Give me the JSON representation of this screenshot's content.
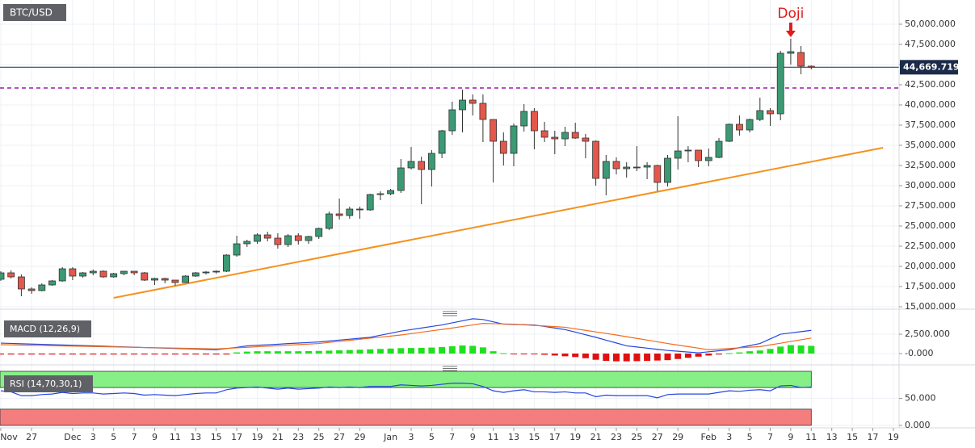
{
  "chart_data": [
    {
      "type": "candlestick",
      "title": "BTC/USD",
      "open": [
        18400,
        19200,
        18700,
        17200,
        17000,
        17700,
        18200,
        19700,
        18800,
        19200,
        19400,
        18700,
        19100,
        19400,
        19200,
        18300,
        18500,
        18300,
        18000,
        18800,
        19200,
        19300,
        19400,
        21400,
        22800,
        23100,
        23900,
        23500,
        22700,
        23800,
        23200,
        23700,
        24700,
        26500,
        26300,
        27100,
        27000,
        28900,
        29000,
        29400,
        32200,
        33000,
        32000,
        34000,
        36800,
        39400,
        40600,
        40200,
        38200,
        35500,
        34000,
        37400,
        39200,
        36800,
        36000,
        35800,
        36600,
        35900,
        35500,
        30900,
        33000,
        32100,
        32300,
        32300,
        32500,
        30400,
        33400,
        34300,
        34400,
        33100,
        33500,
        35500,
        37600,
        36900,
        38200,
        39300,
        38900,
        46400,
        46500,
        44800
      ],
      "high": [
        19400,
        19500,
        19000,
        17400,
        17900,
        18300,
        19900,
        19900,
        19300,
        19600,
        19500,
        19200,
        19400,
        19400,
        19300,
        18600,
        18600,
        18300,
        18900,
        19300,
        19400,
        19500,
        21500,
        23800,
        23300,
        24100,
        24300,
        24100,
        24000,
        24100,
        23800,
        24800,
        26800,
        28400,
        27400,
        27400,
        29000,
        29300,
        29600,
        33300,
        34800,
        33600,
        34400,
        36900,
        40400,
        41900,
        41300,
        41300,
        38200,
        36600,
        37700,
        40100,
        39600,
        37900,
        36800,
        37300,
        37800,
        36400,
        35600,
        33800,
        33500,
        32900,
        34900,
        32900,
        32600,
        33800,
        38600,
        34900,
        34400,
        34600,
        35900,
        37700,
        38700,
        38300,
        40900,
        39600,
        46700,
        48200,
        47300,
        44900
      ],
      "low": [
        18200,
        18500,
        16300,
        16600,
        16900,
        17600,
        18100,
        18300,
        18600,
        18900,
        18600,
        18600,
        18900,
        18900,
        18200,
        17700,
        17900,
        17600,
        18000,
        18700,
        19000,
        19100,
        19300,
        21200,
        22400,
        22800,
        23100,
        22200,
        22400,
        22700,
        22800,
        23400,
        24500,
        25800,
        25900,
        25900,
        26900,
        28200,
        28800,
        29100,
        32000,
        27700,
        29900,
        33400,
        36300,
        36600,
        38700,
        35400,
        30400,
        32500,
        32400,
        36700,
        34500,
        35400,
        33900,
        34900,
        35800,
        33400,
        30000,
        28800,
        31400,
        31000,
        31800,
        30800,
        29300,
        29900,
        32000,
        32900,
        32300,
        32400,
        33400,
        35400,
        36200,
        36600,
        38000,
        37400,
        38100,
        45000,
        43800,
        44400
      ],
      "close": [
        19200,
        18700,
        17200,
        17000,
        17700,
        18200,
        19700,
        18800,
        19200,
        19400,
        18700,
        19100,
        19400,
        19200,
        18300,
        18500,
        18300,
        18000,
        18800,
        19200,
        19300,
        19400,
        21400,
        22800,
        23100,
        23900,
        23500,
        22700,
        23800,
        23200,
        23700,
        24700,
        26500,
        26300,
        27100,
        27000,
        28900,
        29000,
        29400,
        32200,
        33000,
        32000,
        34000,
        36800,
        39400,
        40600,
        40200,
        38200,
        35500,
        34000,
        37400,
        39200,
        36800,
        36000,
        35800,
        36600,
        35900,
        35500,
        30900,
        33000,
        32100,
        32300,
        32300,
        32500,
        30400,
        33400,
        34300,
        34400,
        33100,
        33500,
        35500,
        37600,
        36900,
        38200,
        39300,
        38900,
        46400,
        46600,
        44800,
        44669.719
      ],
      "up_color": "#3b9a74",
      "down_color": "#e4574b",
      "ylim": [
        14800,
        53000
      ],
      "yticks": [
        {
          "value": 15000,
          "label": "15,000.000"
        },
        {
          "value": 17500,
          "label": "17,500.000"
        },
        {
          "value": 20000,
          "label": "20,000.000"
        },
        {
          "value": 22500,
          "label": "22,500.000"
        },
        {
          "value": 25000,
          "label": "25,000.000"
        },
        {
          "value": 27500,
          "label": "27,500.000"
        },
        {
          "value": 30000,
          "label": "30,000.000"
        },
        {
          "value": 32500,
          "label": "32,500.000"
        },
        {
          "value": 35000,
          "label": "35,000.000"
        },
        {
          "value": 37500,
          "label": "37,500.000"
        },
        {
          "value": 40000,
          "label": "40,000.000"
        },
        {
          "value": 42500,
          "label": "42,500.000"
        },
        {
          "value": 45000,
          "label": "45,000.000"
        },
        {
          "value": 47500,
          "label": "47,500.000"
        },
        {
          "value": 50000,
          "label": "50,000.000"
        }
      ],
      "xticks": [
        {
          "value": 0,
          "label": "Nov"
        },
        {
          "value": 3,
          "label": "27"
        },
        {
          "value": 7,
          "label": "Dec"
        },
        {
          "value": 9,
          "label": "3"
        },
        {
          "value": 11,
          "label": "5"
        },
        {
          "value": 13,
          "label": "7"
        },
        {
          "value": 15,
          "label": "9"
        },
        {
          "value": 17,
          "label": "11"
        },
        {
          "value": 19,
          "label": "13"
        },
        {
          "value": 21,
          "label": "15"
        },
        {
          "value": 23,
          "label": "17"
        },
        {
          "value": 25,
          "label": "19"
        },
        {
          "value": 27,
          "label": "21"
        },
        {
          "value": 29,
          "label": "23"
        },
        {
          "value": 31,
          "label": "25"
        },
        {
          "value": 33,
          "label": "27"
        },
        {
          "value": 35,
          "label": "29"
        },
        {
          "value": 38,
          "label": "Jan"
        },
        {
          "value": 40,
          "label": "3"
        },
        {
          "value": 42,
          "label": "5"
        },
        {
          "value": 44,
          "label": "7"
        },
        {
          "value": 46,
          "label": "9"
        },
        {
          "value": 48,
          "label": "11"
        },
        {
          "value": 50,
          "label": "13"
        },
        {
          "value": 52,
          "label": "15"
        },
        {
          "value": 54,
          "label": "17"
        },
        {
          "value": 56,
          "label": "19"
        },
        {
          "value": 58,
          "label": "21"
        },
        {
          "value": 60,
          "label": "23"
        },
        {
          "value": 62,
          "label": "25"
        },
        {
          "value": 64,
          "label": "27"
        },
        {
          "value": 66,
          "label": "29"
        },
        {
          "value": 69,
          "label": "Feb"
        },
        {
          "value": 71,
          "label": "3"
        },
        {
          "value": 73,
          "label": "5"
        },
        {
          "value": 75,
          "label": "7"
        },
        {
          "value": 77,
          "label": "9"
        },
        {
          "value": 79,
          "label": "11"
        },
        {
          "value": 81,
          "label": "13"
        },
        {
          "value": 83,
          "label": "15"
        },
        {
          "value": 85,
          "label": "17"
        },
        {
          "value": 87,
          "label": "19"
        }
      ],
      "grid": true,
      "current_price": {
        "value": 44669.719,
        "label": "44,669.719",
        "color": "#1c2b4a"
      },
      "resistance": {
        "value": 42100,
        "color": "#9c1aa8"
      },
      "trendline": {
        "x": [
          11,
          86
        ],
        "y": [
          16100,
          34700
        ],
        "color": "#f5921e"
      },
      "annotation": {
        "text": "Doji",
        "candle": 77,
        "color": "#e01b1b"
      }
    },
    {
      "type": "macd",
      "title": "MACD (12,26,9)",
      "series": [
        {
          "color": "#2447e0",
          "values": [
            1350,
            1310,
            1270,
            1230,
            1190,
            1150,
            1110,
            1070,
            1030,
            990,
            950,
            900,
            860,
            820,
            780,
            740,
            700,
            660,
            620,
            580,
            540,
            500,
            650,
            800,
            1000,
            1070,
            1140,
            1210,
            1290,
            1360,
            1430,
            1500,
            1620,
            1740,
            1860,
            1980,
            2100,
            2370,
            2630,
            2900,
            3100,
            3300,
            3500,
            3700,
            3970,
            4230,
            4500,
            4400,
            4100,
            3800,
            3770,
            3730,
            3700,
            3500,
            3300,
            3100,
            2770,
            2430,
            2100,
            1730,
            1370,
            1000,
            850,
            700,
            550,
            400,
            300,
            200,
            100,
            230,
            370,
            500,
            770,
            1030,
            1300,
            1900,
            2500,
            2670,
            2830,
            3000
          ]
        },
        {
          "color": "#f26b1d",
          "values": [
            1150,
            1120,
            1100,
            1070,
            1050,
            1020,
            990,
            970,
            940,
            910,
            890,
            860,
            840,
            810,
            780,
            760,
            730,
            710,
            680,
            650,
            630,
            600,
            670,
            740,
            810,
            880,
            950,
            1020,
            1090,
            1160,
            1230,
            1300,
            1440,
            1570,
            1710,
            1850,
            1990,
            2120,
            2260,
            2400,
            2580,
            2760,
            2940,
            3120,
            3300,
            3500,
            3700,
            3900,
            3870,
            3830,
            3800,
            3720,
            3640,
            3560,
            3480,
            3400,
            3200,
            3000,
            2800,
            2600,
            2400,
            2180,
            1960,
            1740,
            1520,
            1300,
            1100,
            900,
            700,
            500,
            580,
            660,
            740,
            820,
            900,
            1120,
            1340,
            1560,
            1780,
            2000
          ]
        }
      ],
      "histogram": {
        "up_color": "#1fe01f",
        "down_color": "#e01010",
        "values": [
          -120,
          -120,
          -120,
          -120,
          -120,
          -120,
          -120,
          -120,
          -120,
          -120,
          -120,
          -120,
          -120,
          -120,
          -120,
          -120,
          -120,
          -120,
          -120,
          -120,
          -120,
          -120,
          -120,
          150,
          250,
          300,
          300,
          300,
          300,
          300,
          320,
          340,
          380,
          420,
          460,
          500,
          550,
          600,
          650,
          700,
          720,
          740,
          780,
          850,
          950,
          1050,
          1000,
          800,
          300,
          50,
          -20,
          -50,
          -100,
          -150,
          -250,
          -350,
          -450,
          -600,
          -800,
          -950,
          -1000,
          -1000,
          -980,
          -950,
          -900,
          -850,
          -700,
          -550,
          -400,
          -250,
          -120,
          50,
          150,
          300,
          400,
          600,
          900,
          1100,
          1050,
          1000
        ]
      },
      "ylim": [
        -1250,
        4800
      ],
      "yticks": [
        {
          "value": 2500,
          "label": "2,500.000"
        },
        {
          "value": 0,
          "label": "-0.000"
        }
      ]
    },
    {
      "type": "rsi",
      "title": "RSI (14,70,30,1)",
      "series": [
        {
          "color": "#2447e0",
          "values": [
            64,
            62,
            55,
            55,
            57,
            58,
            61,
            59,
            60,
            60,
            58,
            59,
            60,
            59,
            56,
            57,
            56,
            55,
            57,
            59,
            60,
            60,
            66,
            69,
            70,
            71,
            69,
            67,
            69,
            67,
            68,
            69,
            71,
            70,
            71,
            70,
            72,
            72,
            72,
            75,
            74,
            73,
            74,
            76,
            78,
            78,
            77,
            72,
            64,
            61,
            64,
            66,
            62,
            62,
            61,
            62,
            60,
            60,
            53,
            56,
            55,
            55,
            55,
            55,
            51,
            57,
            58,
            58,
            58,
            58,
            61,
            64,
            63,
            65,
            66,
            64,
            73,
            74,
            70,
            71
          ]
        }
      ],
      "overbought": 70,
      "oversold": 30,
      "overbought_color": "#86f086",
      "oversold_color": "#f47e7e",
      "ylim": [
        0,
        100
      ],
      "yticks": [
        {
          "value": 50,
          "label": "50.000"
        },
        {
          "value": 0,
          "label": "0.000"
        }
      ]
    }
  ]
}
